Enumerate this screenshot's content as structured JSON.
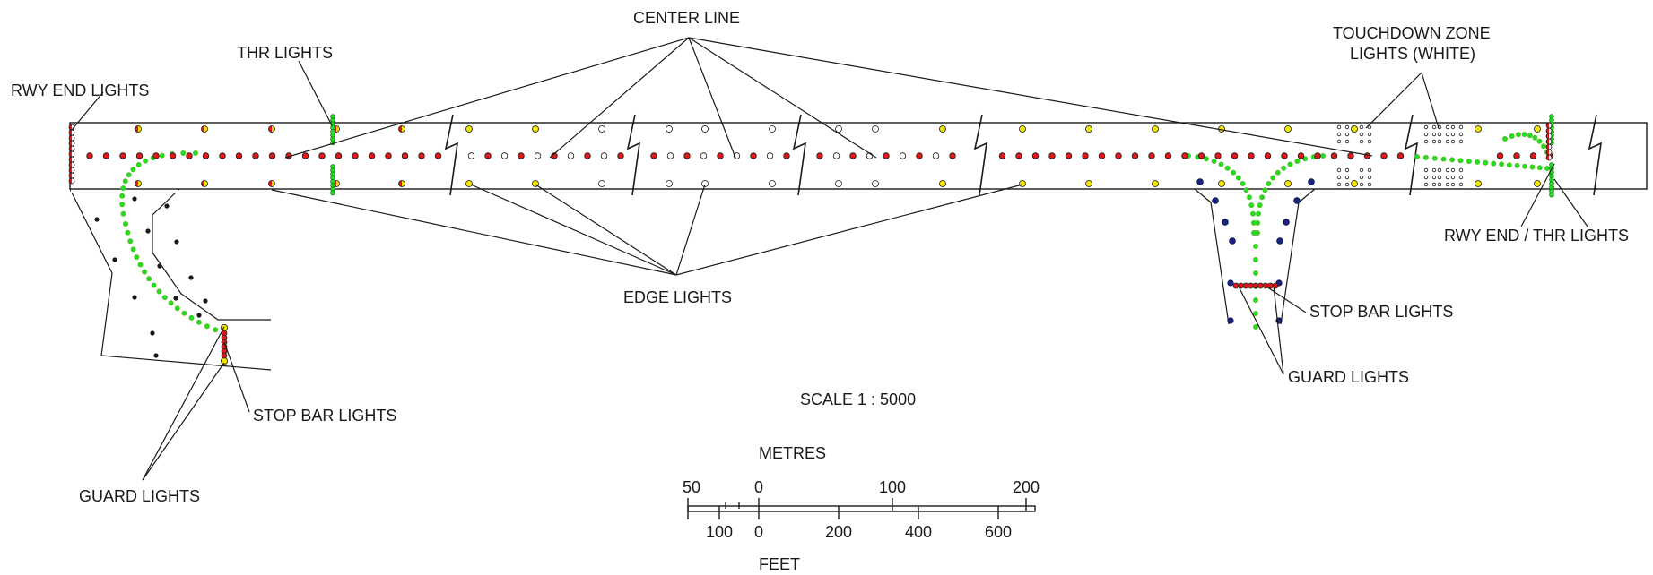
{
  "labels": {
    "rwy_end_lights": "RWY END LIGHTS",
    "thr_lights": "THR LIGHTS",
    "center_line": "CENTER LINE",
    "touchdown_zone_line1": "TOUCHDOWN ZONE",
    "touchdown_zone_line2": "LIGHTS (WHITE)",
    "rwy_end_thr_lights": "RWY END / THR LIGHTS",
    "edge_lights": "EDGE LIGHTS",
    "stop_bar_lights_right": "STOP BAR LIGHTS",
    "guard_lights_right": "GUARD LIGHTS",
    "stop_bar_lights_left": "STOP BAR LIGHTS",
    "guard_lights_left": "GUARD LIGHTS",
    "scale": "SCALE 1 : 5000"
  },
  "scale_bar": {
    "metres_title": "METRES",
    "feet_title": "FEET",
    "metres_ticks": [
      "50",
      "0",
      "100",
      "200"
    ],
    "feet_ticks": [
      "100",
      "0",
      "200",
      "400",
      "600"
    ]
  },
  "colors": {
    "red": "#e01818",
    "yellow": "#f2e600",
    "green": "#22dd22",
    "dark_green": "#1b7a1b",
    "navy": "#1a237e",
    "black": "#1a1a1a",
    "white": "#ffffff"
  }
}
